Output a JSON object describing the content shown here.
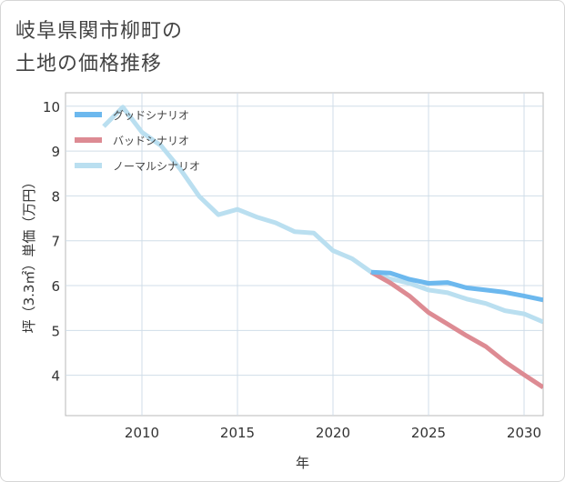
{
  "title_line1": "岐阜県関市柳町の",
  "title_line2": "土地の価格推移",
  "chart_data": {
    "type": "line",
    "xlabel": "年",
    "ylabel": "坪（3.3㎡）単価（万円）",
    "xlim": [
      2006,
      2031
    ],
    "ylim": [
      3.1,
      10.3
    ],
    "x_ticks": [
      "2010",
      "2015",
      "2020",
      "2025",
      "2030"
    ],
    "y_ticks": [
      "4",
      "5",
      "6",
      "7",
      "8",
      "9",
      "10"
    ],
    "grid": true,
    "legend_position": "top-left",
    "series": [
      {
        "name": "グッドシナリオ",
        "color": "#6cb8ee",
        "points": [
          [
            2022,
            6.3
          ],
          [
            2023,
            6.28
          ],
          [
            2024,
            6.14
          ],
          [
            2025,
            6.05
          ],
          [
            2026,
            6.07
          ],
          [
            2027,
            5.95
          ],
          [
            2028,
            5.9
          ],
          [
            2029,
            5.85
          ],
          [
            2030,
            5.77
          ],
          [
            2031,
            5.68
          ]
        ]
      },
      {
        "name": "バッドシナリオ",
        "color": "#dd8b93",
        "points": [
          [
            2022,
            6.3
          ],
          [
            2023,
            6.06
          ],
          [
            2024,
            5.77
          ],
          [
            2025,
            5.4
          ],
          [
            2026,
            5.14
          ],
          [
            2027,
            4.88
          ],
          [
            2028,
            4.64
          ],
          [
            2029,
            4.3
          ],
          [
            2030,
            4.01
          ],
          [
            2031,
            3.73
          ]
        ]
      },
      {
        "name": "ノーマルシナリオ",
        "color": "#badff0",
        "points": [
          [
            2008,
            9.55
          ],
          [
            2009,
            9.98
          ],
          [
            2010,
            9.42
          ],
          [
            2011,
            9.12
          ],
          [
            2012,
            8.6
          ],
          [
            2013,
            7.99
          ],
          [
            2014,
            7.58
          ],
          [
            2015,
            7.7
          ],
          [
            2016,
            7.53
          ],
          [
            2017,
            7.4
          ],
          [
            2018,
            7.2
          ],
          [
            2019,
            7.17
          ],
          [
            2020,
            6.78
          ],
          [
            2021,
            6.6
          ],
          [
            2022,
            6.3
          ],
          [
            2023,
            6.15
          ],
          [
            2024,
            6.05
          ],
          [
            2025,
            5.9
          ],
          [
            2026,
            5.84
          ],
          [
            2027,
            5.7
          ],
          [
            2028,
            5.6
          ],
          [
            2029,
            5.44
          ],
          [
            2030,
            5.37
          ],
          [
            2031,
            5.19
          ]
        ]
      }
    ]
  }
}
